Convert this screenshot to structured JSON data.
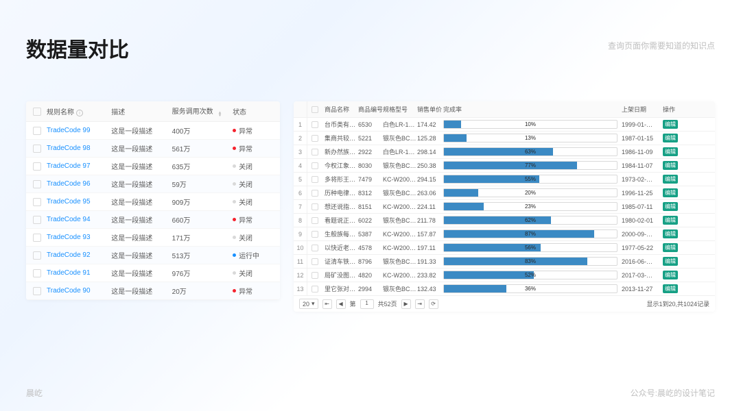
{
  "title": "数据量对比",
  "subtitle": "查询页面你需要知道的知识点",
  "footer_left": "晨屹",
  "footer_right": "公众号:晨屹的设计笔记",
  "left_table": {
    "columns": {
      "c1": "规则名称",
      "c2": "描述",
      "c3": "服务调用次数",
      "c4": "状态"
    },
    "info_glyph": "i",
    "rows": [
      {
        "name": "TradeCode 99",
        "desc": "这是一段描述",
        "count": "400万",
        "status": "异常",
        "dot": "red"
      },
      {
        "name": "TradeCode 98",
        "desc": "这是一段描述",
        "count": "561万",
        "status": "异常",
        "dot": "red"
      },
      {
        "name": "TradeCode 97",
        "desc": "这是一段描述",
        "count": "635万",
        "status": "关闭",
        "dot": "gray"
      },
      {
        "name": "TradeCode 96",
        "desc": "这是一段描述",
        "count": "59万",
        "status": "关闭",
        "dot": "gray"
      },
      {
        "name": "TradeCode 95",
        "desc": "这是一段描述",
        "count": "909万",
        "status": "关闭",
        "dot": "gray"
      },
      {
        "name": "TradeCode 94",
        "desc": "这是一段描述",
        "count": "660万",
        "status": "异常",
        "dot": "red"
      },
      {
        "name": "TradeCode 93",
        "desc": "这是一段描述",
        "count": "171万",
        "status": "关闭",
        "dot": "gray"
      },
      {
        "name": "TradeCode 92",
        "desc": "这是一段描述",
        "count": "513万",
        "status": "运行中",
        "dot": "blue"
      },
      {
        "name": "TradeCode 91",
        "desc": "这是一段描述",
        "count": "976万",
        "status": "关闭",
        "dot": "gray"
      },
      {
        "name": "TradeCode 90",
        "desc": "这是一段描述",
        "count": "20万",
        "status": "异常",
        "dot": "red"
      }
    ]
  },
  "right_table": {
    "columns": {
      "name": "商品名称",
      "code": "商品编号",
      "model": "规格型号",
      "price": "销售单价",
      "progress": "完成率",
      "date": "上架日期",
      "op": "操作"
    },
    "op_label": "编辑",
    "rows": [
      {
        "idx": "1",
        "name": "台币类有行…",
        "code": "6530",
        "model": "白色LR-16…",
        "price": "174.42",
        "pct": 10,
        "date": "1999-01-…"
      },
      {
        "idx": "2",
        "name": "集商共较议…",
        "code": "5221",
        "model": "银灰色BC…",
        "price": "125.28",
        "pct": 13,
        "date": "1987-01-15"
      },
      {
        "idx": "3",
        "name": "新办然族集…",
        "code": "2922",
        "model": "白色LR-16…",
        "price": "298.14",
        "pct": 63,
        "date": "1986-11-09"
      },
      {
        "idx": "4",
        "name": "今权江象经…",
        "code": "8030",
        "model": "银灰色BC…",
        "price": "250.38",
        "pct": 77,
        "date": "1984-11-07"
      },
      {
        "idx": "5",
        "name": "多将形王置…",
        "code": "7479",
        "model": "KC-W200…",
        "price": "294.15",
        "pct": 55,
        "date": "1973-02-…"
      },
      {
        "idx": "6",
        "name": "历种电律内…",
        "code": "8312",
        "model": "银灰色BC…",
        "price": "263.06",
        "pct": 20,
        "date": "1996-11-25"
      },
      {
        "idx": "7",
        "name": "想还说指省…",
        "code": "8151",
        "model": "KC-W200…",
        "price": "224.11",
        "pct": 23,
        "date": "1985-07-11"
      },
      {
        "idx": "8",
        "name": "看题说正声…",
        "code": "6022",
        "model": "银灰色BC…",
        "price": "211.78",
        "pct": 62,
        "date": "1980-02-01"
      },
      {
        "idx": "9",
        "name": "生般族每解…",
        "code": "5387",
        "model": "KC-W200…",
        "price": "157.87",
        "pct": 87,
        "date": "2000-09-…"
      },
      {
        "idx": "10",
        "name": "以快近老样…",
        "code": "4578",
        "model": "KC-W200…",
        "price": "197.11",
        "pct": 56,
        "date": "1977-05-22"
      },
      {
        "idx": "11",
        "name": "证清车铁实…",
        "code": "8796",
        "model": "银灰色BC…",
        "price": "191.33",
        "pct": 83,
        "date": "2016-06-…"
      },
      {
        "idx": "12",
        "name": "局矿没图些…",
        "code": "4820",
        "model": "KC-W200…",
        "price": "233.82",
        "pct": 52,
        "date": "2017-03-…"
      },
      {
        "idx": "13",
        "name": "里它张对连…",
        "code": "2994",
        "model": "银灰色BC…",
        "price": "132.43",
        "pct": 36,
        "date": "2013-11-27"
      }
    ]
  },
  "pager": {
    "size": "20",
    "page": "1",
    "total_pages_label": "共52页",
    "summary": "显示1到20,共1024记录"
  }
}
